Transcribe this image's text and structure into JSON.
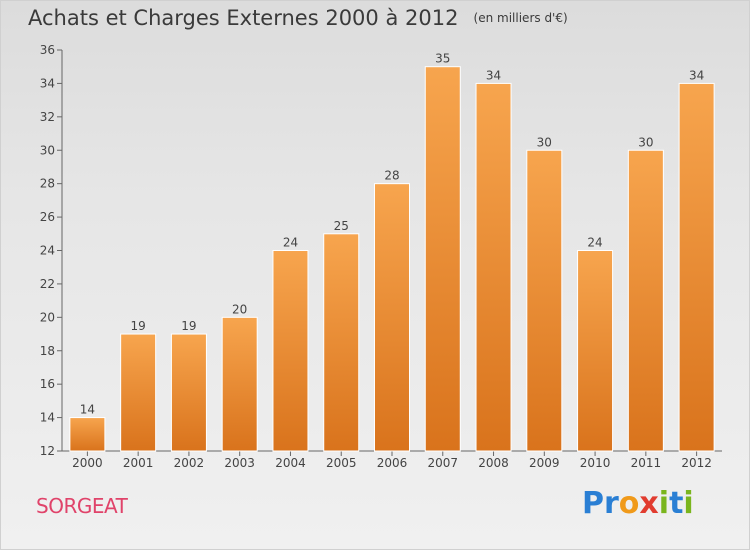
{
  "header": {
    "title": "Achats et Charges Externes 2000 à 2012",
    "subtitle": "(en milliers d'€)"
  },
  "footer": {
    "commune": "SORGEAT",
    "logo_letters": [
      "P",
      "r",
      "o",
      "x",
      "i",
      "t",
      "i"
    ]
  },
  "colors": {
    "bar_top": "#f7a54e",
    "bar_bottom": "#d9731c",
    "commune": "#e0436a",
    "logo": [
      "#2a7fd4",
      "#2a7fd4",
      "#f09a1a",
      "#e13c2f",
      "#7ab51d",
      "#2a7fd4",
      "#7ab51d"
    ]
  },
  "chart_data": {
    "type": "bar",
    "title": "Achats et Charges Externes 2000 à 2012",
    "subtitle": "(en milliers d'€)",
    "categories": [
      "2000",
      "2001",
      "2002",
      "2003",
      "2004",
      "2005",
      "2006",
      "2007",
      "2008",
      "2009",
      "2010",
      "2011",
      "2012"
    ],
    "values": [
      14,
      19,
      19,
      20,
      24,
      25,
      28,
      35,
      34,
      30,
      24,
      30,
      34
    ],
    "ylim": [
      12,
      36
    ],
    "yticks": [
      12,
      14,
      16,
      18,
      20,
      22,
      24,
      26,
      28,
      30,
      32,
      34,
      36
    ],
    "grid": false,
    "legend": "none"
  }
}
